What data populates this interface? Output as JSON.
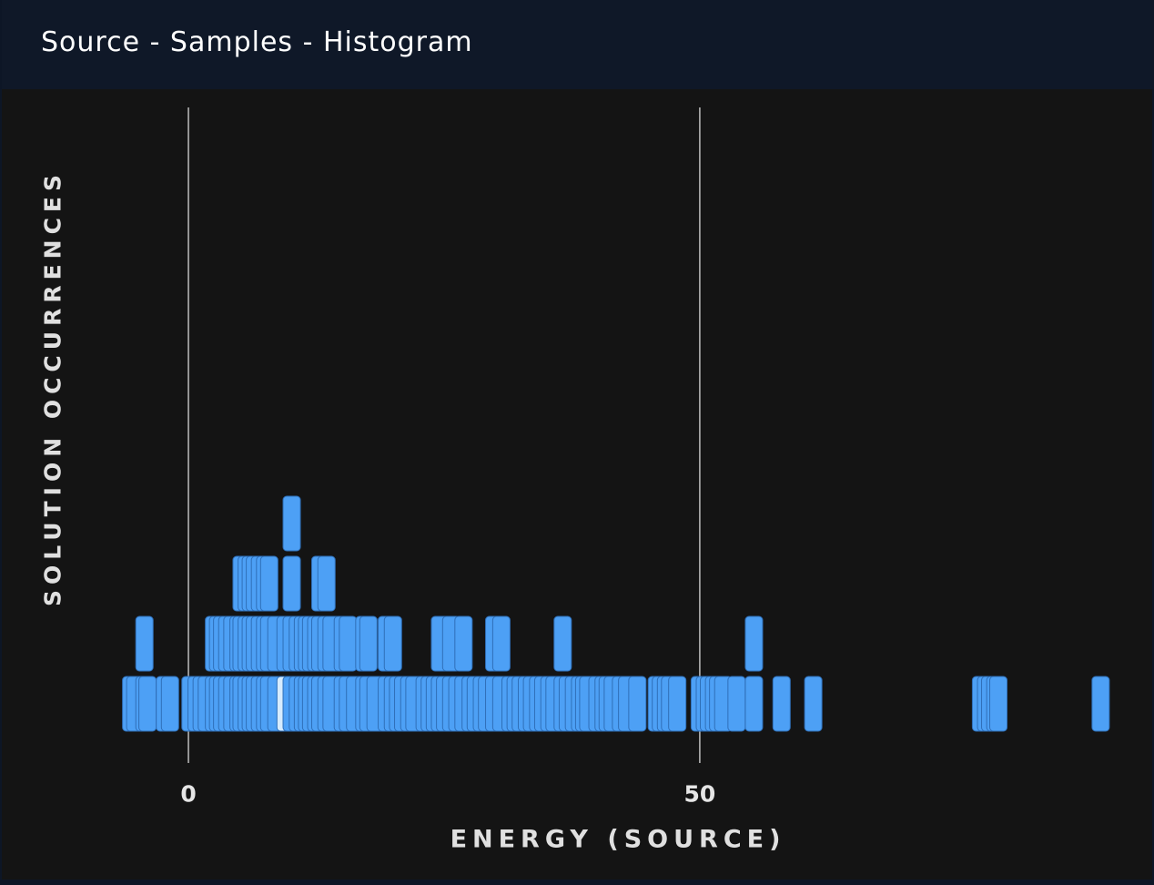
{
  "header": {
    "title": "Source - Samples - Histogram"
  },
  "chart_data": {
    "type": "bar",
    "xlabel": "ENERGY (SOURCE)",
    "ylabel": "SOLUTION OCCURRENCES",
    "xticks": [
      0,
      50
    ],
    "xlim": [
      -6.5,
      90.5
    ],
    "ylim": [
      0,
      4
    ],
    "colors": {
      "bar": "#4da0f5",
      "bar_edge": "#2f6fb8",
      "highlight": "#d6ecff",
      "grid": "#bdbdbd"
    },
    "highlight_x": 9.5,
    "x": [
      -5.6,
      -5.2,
      -4.3,
      -4,
      -2.3,
      -1.8,
      0.2,
      0.8,
      1.3,
      1.8,
      2.5,
      2.9,
      3.3,
      3.8,
      4.3,
      4.9,
      5.2,
      5.7,
      6.1,
      6.5,
      7,
      7.5,
      7.9,
      8.6,
      9.5,
      10.1,
      10.7,
      11.2,
      11.6,
      12,
      12.5,
      12.9,
      13.5,
      14,
      15.1,
      15.6,
      16.3,
      17.2,
      17.6,
      18.3,
      19.4,
      20,
      20.5,
      21,
      21.6,
      22.1,
      23.1,
      23.6,
      24.1,
      24.6,
      25.1,
      25.7,
      26.3,
      26.9,
      27.6,
      28.1,
      28.7,
      29.2,
      29.9,
      30.6,
      31.5,
      32,
      32.5,
      33.1,
      33.6,
      34.2,
      34.7,
      35.3,
      35.8,
      36.6,
      37.1,
      37.7,
      38.3,
      38.7,
      39.1,
      40,
      40.6,
      41,
      41.5,
      42.3,
      42.9,
      43.9,
      45.8,
      46.2,
      46.7,
      47.1,
      47.8,
      50,
      50.5,
      50.9,
      51.4,
      51.8,
      52.3,
      53.6,
      55.3,
      58,
      61.1,
      77.5,
      78,
      78.4,
      78.9,
      79.2,
      89.2
    ],
    "values": [
      1,
      1,
      2,
      1,
      1,
      1,
      1,
      1,
      1,
      1,
      2,
      2,
      2,
      2,
      2,
      2,
      3,
      3,
      3,
      3,
      3,
      3,
      3,
      2,
      2,
      4,
      2,
      2,
      2,
      2,
      2,
      3,
      3,
      2,
      2,
      2,
      1,
      2,
      2,
      1,
      2,
      2,
      1,
      1,
      1,
      1,
      1,
      1,
      1,
      2,
      1,
      2,
      1,
      2,
      1,
      1,
      1,
      1,
      2,
      2,
      1,
      1,
      1,
      1,
      1,
      1,
      1,
      1,
      1,
      2,
      1,
      1,
      1,
      1,
      1,
      1,
      1,
      1,
      1,
      1,
      1,
      1,
      1,
      1,
      1,
      1,
      1,
      1,
      1,
      1,
      1,
      1,
      1,
      1,
      2,
      1,
      1,
      1,
      1,
      1,
      1,
      1,
      1
    ]
  }
}
